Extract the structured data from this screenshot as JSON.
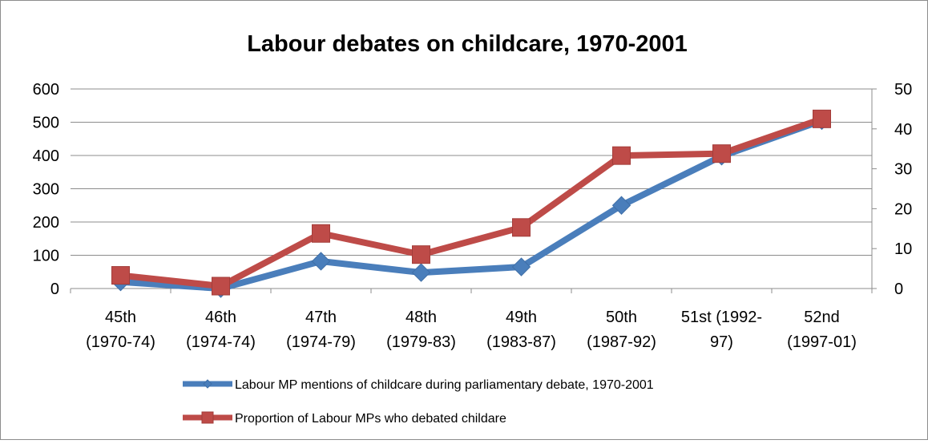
{
  "chart_data": {
    "type": "line",
    "title": "Labour debates on childcare, 1970-2001",
    "categories": [
      [
        "45th",
        "(1970-74)"
      ],
      [
        "46th",
        "(1974-74)"
      ],
      [
        "47th",
        "(1974-79)"
      ],
      [
        "48th",
        "(1979-83)"
      ],
      [
        "49th",
        "(1983-87)"
      ],
      [
        "50th",
        "(1987-92)"
      ],
      [
        "51st (1992-",
        "97)"
      ],
      [
        "52nd",
        "(1997-01)"
      ]
    ],
    "y_left": {
      "min": 0,
      "max": 600,
      "ticks": [
        0,
        100,
        200,
        300,
        400,
        500,
        600
      ]
    },
    "y_right": {
      "min": 0,
      "max": 50,
      "ticks": [
        0,
        10,
        20,
        30,
        40,
        50
      ]
    },
    "grid": true,
    "legend_position": "bottom",
    "series": [
      {
        "name": "Labour MP mentions of childcare during parliamentary debate, 1970-2001",
        "axis": "left",
        "marker": "diamond",
        "color": "#4a7ebb",
        "values": [
          20,
          0,
          82,
          48,
          65,
          250,
          398,
          505
        ]
      },
      {
        "name": "Proportion of Labour MPs who debated childare",
        "axis": "right",
        "marker": "square",
        "color": "#be4b48",
        "values": [
          3.3,
          0.6,
          13.8,
          8.5,
          15.3,
          33.3,
          33.8,
          42.5
        ]
      }
    ]
  }
}
